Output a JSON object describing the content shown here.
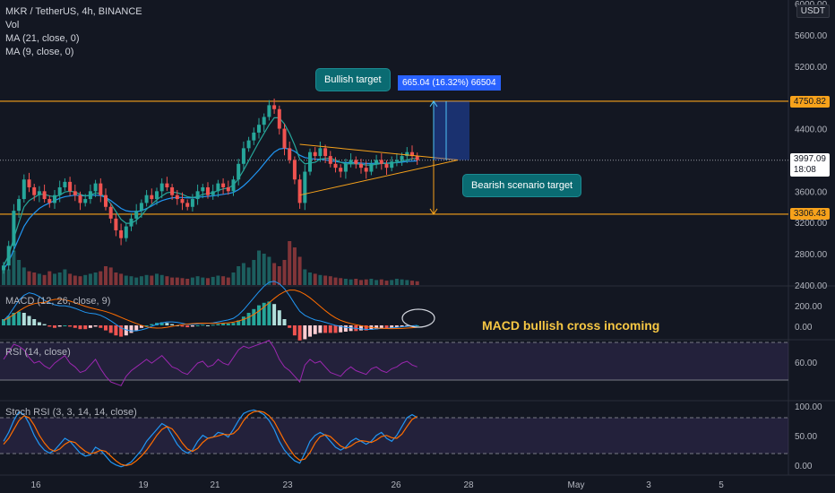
{
  "header": {
    "symbol_line": "MKR / TetherUS, 4h, BINANCE",
    "overlays": [
      "Vol",
      "MA (21, close, 0)",
      "MA (9, close, 0)"
    ],
    "currency": "USDT"
  },
  "annotations": {
    "bullish_target": "Bullish target",
    "bearish_target": "Bearish scenario target",
    "measure_label": "665.04 (16.32%) 66504",
    "macd_note": "MACD bullish cross incoming"
  },
  "price_tags": {
    "upper": "4750.82",
    "current": "3997.09",
    "countdown": "18:08",
    "lower": "3306.43"
  },
  "indicators": {
    "macd": "MACD (12, 26, close, 9)",
    "rsi": "RSI (14, close)",
    "stoch": "Stoch RSI (3, 3, 14, 14, close)"
  },
  "colors": {
    "background": "#131722",
    "bull": "#26a69a",
    "bear": "#ef5350",
    "ma21": "#2196f3",
    "ma9": "#26a69a",
    "level": "#f7a21b",
    "rsi_line": "#9c27b0",
    "stoch_k": "#2196f3",
    "stoch_d": "#ff6d00",
    "macd_line": "#2196f3",
    "signal_line": "#ff6d00"
  },
  "chart_data": {
    "type": "candlestick",
    "price_axis": [
      "6000.00",
      "5600.00",
      "5200.00",
      "4400.00",
      "3600.00",
      "3200.00",
      "2800.00",
      "2400.00"
    ],
    "macd_axis": [
      "200.00",
      "0.00"
    ],
    "rsi_axis": [
      "60.00"
    ],
    "stoch_axis": [
      "100.00",
      "50.00",
      "0.00"
    ],
    "x_ticks": [
      "16",
      "19",
      "21",
      "23",
      "26",
      "28",
      "May",
      "3",
      "5"
    ],
    "ylim": [
      2400,
      6000
    ],
    "levels": [
      4750.82,
      3306.43
    ],
    "current_price": 3997.09,
    "closes": [
      2650,
      2900,
      3350,
      3500,
      3750,
      3650,
      3550,
      3600,
      3500,
      3450,
      3550,
      3650,
      3720,
      3600,
      3550,
      3450,
      3500,
      3600,
      3700,
      3550,
      3400,
      3250,
      3100,
      3000,
      3150,
      3250,
      3350,
      3450,
      3550,
      3500,
      3600,
      3700,
      3650,
      3550,
      3500,
      3450,
      3400,
      3500,
      3600,
      3650,
      3550,
      3600,
      3700,
      3650,
      3600,
      3750,
      3950,
      4150,
      4250,
      4350,
      4450,
      4550,
      4700,
      4650,
      4400,
      4150,
      4000,
      3750,
      3450,
      3850,
      4100,
      4050,
      4150,
      4050,
      3950,
      3900,
      3850,
      3950,
      4000,
      3950,
      3900,
      3850,
      3950,
      4000,
      3950,
      3900,
      3980,
      4000,
      4050,
      4100,
      4050,
      3997
    ],
    "ma21": [
      2600,
      2700,
      2850,
      3000,
      3150,
      3250,
      3320,
      3380,
      3420,
      3450,
      3480,
      3510,
      3530,
      3540,
      3550,
      3545,
      3540,
      3545,
      3550,
      3545,
      3520,
      3480,
      3430,
      3380,
      3350,
      3340,
      3340,
      3350,
      3380,
      3410,
      3450,
      3480,
      3500,
      3515,
      3520,
      3520,
      3515,
      3515,
      3520,
      3530,
      3535,
      3540,
      3550,
      3560,
      3570,
      3585,
      3620,
      3670,
      3730,
      3800,
      3870,
      3950,
      4030,
      4100,
      4140,
      4150,
      4140,
      4110,
      4060,
      4030,
      4020,
      4010,
      4010,
      4000,
      3990,
      3980,
      3970,
      3965,
      3965,
      3965,
      3960,
      3955,
      3955,
      3958,
      3960,
      3960,
      3962,
      3966,
      3972,
      3980,
      3985,
      3988
    ],
    "ma9": [
      2650,
      2780,
      3000,
      3200,
      3400,
      3480,
      3520,
      3560,
      3560,
      3540,
      3530,
      3550,
      3590,
      3600,
      3590,
      3560,
      3540,
      3550,
      3580,
      3570,
      3520,
      3440,
      3340,
      3240,
      3190,
      3190,
      3230,
      3290,
      3370,
      3430,
      3490,
      3540,
      3580,
      3590,
      3580,
      3560,
      3530,
      3520,
      3530,
      3560,
      3570,
      3580,
      3610,
      3630,
      3640,
      3680,
      3760,
      3870,
      3990,
      4110,
      4230,
      4340,
      4450,
      4540,
      4540,
      4460,
      4340,
      4190,
      4010,
      3950,
      3960,
      3970,
      4010,
      4020,
      4020,
      4000,
      3970,
      3950,
      3950,
      3950,
      3945,
      3935,
      3935,
      3945,
      3955,
      3955,
      3960,
      3970,
      3985,
      4000,
      4015,
      4020
    ],
    "volumes": [
      30,
      25,
      55,
      40,
      28,
      22,
      20,
      18,
      16,
      22,
      18,
      20,
      25,
      18,
      15,
      14,
      16,
      18,
      20,
      22,
      30,
      28,
      20,
      18,
      15,
      14,
      12,
      14,
      16,
      15,
      18,
      16,
      14,
      12,
      12,
      11,
      10,
      12,
      14,
      12,
      11,
      13,
      15,
      14,
      12,
      20,
      30,
      35,
      28,
      40,
      55,
      50,
      45,
      35,
      30,
      40,
      70,
      60,
      45,
      25,
      20,
      18,
      16,
      15,
      14,
      12,
      11,
      10,
      9,
      10,
      8,
      9,
      10,
      8,
      9,
      7,
      8,
      10,
      9,
      8,
      7,
      6
    ],
    "macd_hist": [
      10,
      15,
      20,
      22,
      20,
      15,
      10,
      5,
      2,
      -2,
      -4,
      -2,
      0,
      -2,
      -4,
      -6,
      -6,
      -4,
      -2,
      -4,
      -8,
      -12,
      -16,
      -18,
      -16,
      -12,
      -8,
      -4,
      0,
      2,
      4,
      5,
      4,
      2,
      0,
      -2,
      -3,
      -2,
      0,
      1,
      0,
      1,
      2,
      3,
      3,
      4,
      8,
      14,
      20,
      26,
      32,
      36,
      38,
      34,
      24,
      10,
      -4,
      -16,
      -24,
      -22,
      -18,
      -14,
      -12,
      -12,
      -12,
      -12,
      -11,
      -10,
      -9,
      -9,
      -8,
      -8,
      -7,
      -6,
      -5,
      -5,
      -4,
      -3,
      -2,
      -1,
      -1,
      0
    ],
    "macd_line": [
      20,
      40,
      70,
      100,
      120,
      130,
      125,
      115,
      100,
      90,
      82,
      78,
      78,
      74,
      68,
      60,
      52,
      48,
      46,
      40,
      30,
      18,
      4,
      -10,
      -18,
      -22,
      -22,
      -18,
      -12,
      -4,
      4,
      10,
      14,
      14,
      12,
      8,
      4,
      4,
      6,
      8,
      8,
      10,
      14,
      18,
      22,
      28,
      42,
      62,
      86,
      110,
      134,
      156,
      172,
      176,
      166,
      146,
      118,
      86,
      56,
      40,
      30,
      22,
      18,
      12,
      6,
      0,
      -4,
      -8,
      -10,
      -12,
      -14,
      -16,
      -16,
      -14,
      -12,
      -12,
      -10,
      -8,
      -6,
      -4,
      -2,
      0
    ],
    "rsi": [
      62,
      70,
      78,
      76,
      72,
      64,
      58,
      60,
      55,
      52,
      58,
      62,
      66,
      58,
      54,
      48,
      50,
      56,
      62,
      52,
      44,
      38,
      36,
      34,
      44,
      50,
      54,
      58,
      62,
      58,
      62,
      66,
      60,
      54,
      52,
      48,
      46,
      52,
      58,
      60,
      54,
      56,
      62,
      58,
      56,
      64,
      72,
      76,
      74,
      76,
      78,
      80,
      82,
      74,
      62,
      54,
      50,
      44,
      38,
      56,
      62,
      58,
      60,
      54,
      48,
      46,
      44,
      50,
      54,
      50,
      48,
      46,
      52,
      54,
      50,
      48,
      52,
      54,
      58,
      60,
      56,
      54
    ],
    "stoch_k": [
      45,
      60,
      80,
      95,
      90,
      75,
      55,
      40,
      30,
      25,
      30,
      40,
      50,
      45,
      35,
      25,
      20,
      22,
      35,
      30,
      20,
      10,
      5,
      2,
      5,
      10,
      20,
      30,
      45,
      55,
      65,
      75,
      70,
      55,
      40,
      30,
      25,
      30,
      45,
      55,
      50,
      52,
      60,
      58,
      52,
      65,
      80,
      92,
      96,
      98,
      95,
      90,
      80,
      65,
      45,
      30,
      20,
      12,
      8,
      25,
      45,
      55,
      60,
      55,
      45,
      35,
      30,
      35,
      45,
      50,
      45,
      40,
      45,
      55,
      60,
      50,
      45,
      55,
      70,
      85,
      90,
      85
    ],
    "stoch_d": [
      40,
      50,
      65,
      80,
      88,
      85,
      72,
      55,
      42,
      32,
      28,
      32,
      40,
      45,
      43,
      35,
      28,
      24,
      26,
      30,
      28,
      20,
      12,
      6,
      4,
      6,
      12,
      20,
      30,
      42,
      55,
      65,
      70,
      66,
      55,
      42,
      32,
      28,
      33,
      43,
      50,
      52,
      54,
      57,
      56,
      58,
      66,
      80,
      90,
      95,
      96,
      94,
      88,
      78,
      62,
      46,
      32,
      20,
      13,
      15,
      26,
      42,
      53,
      56,
      53,
      45,
      37,
      33,
      37,
      43,
      46,
      45,
      43,
      47,
      53,
      55,
      51,
      50,
      57,
      70,
      82,
      87
    ]
  }
}
